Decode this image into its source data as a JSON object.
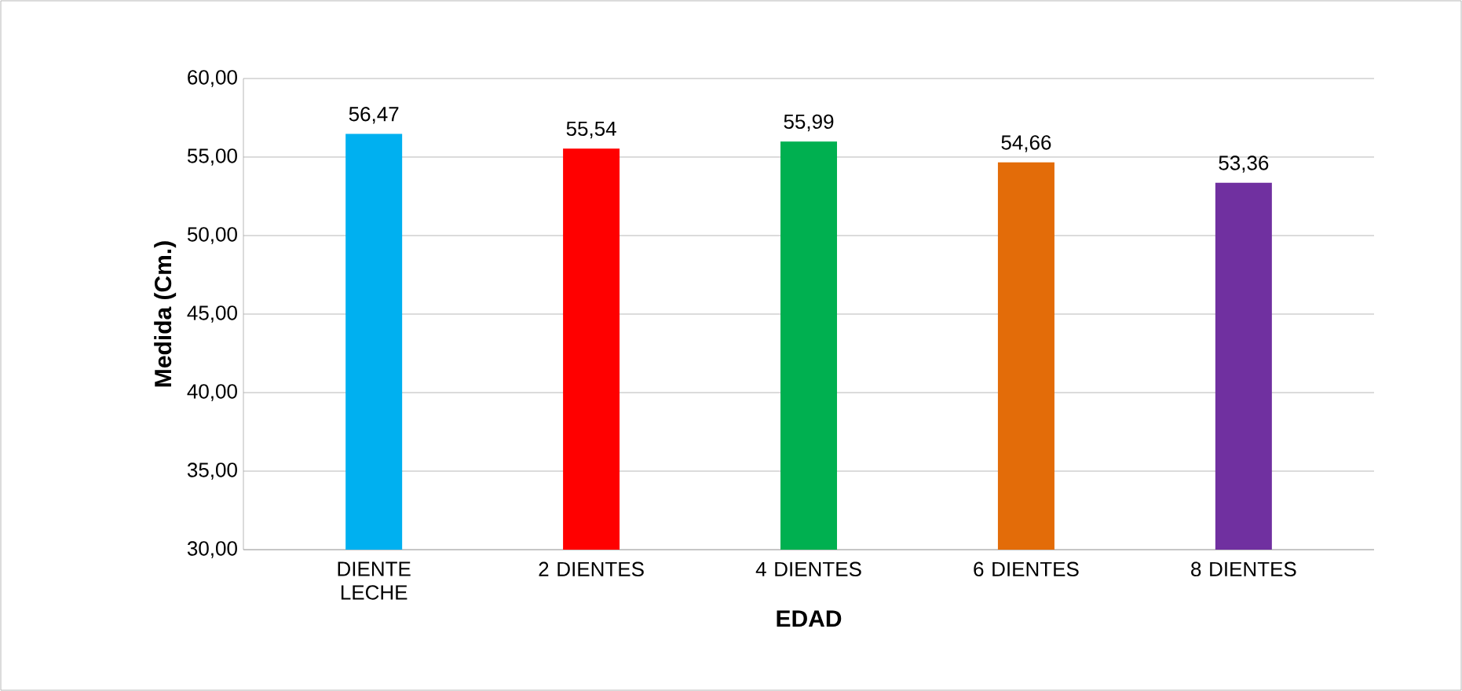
{
  "chart_data": {
    "type": "bar",
    "xlabel": "EDAD",
    "ylabel": "Medida (Cm.)",
    "categories": [
      "DIENTE LECHE",
      "2 DIENTES",
      "4 DIENTES",
      "6 DIENTES",
      "8 DIENTES"
    ],
    "values": [
      56.47,
      55.54,
      55.99,
      54.66,
      53.36
    ],
    "value_labels": [
      "56,47",
      "55,54",
      "55,99",
      "54,66",
      "53,36"
    ],
    "colors": [
      "#00b0f0",
      "#ff0000",
      "#00b050",
      "#e36c09",
      "#7030a0"
    ],
    "ylim": [
      30,
      60
    ],
    "yticks": [
      {
        "value": 30,
        "label": "30,00"
      },
      {
        "value": 35,
        "label": "35,00"
      },
      {
        "value": 40,
        "label": "40,00"
      },
      {
        "value": 45,
        "label": "45,00"
      },
      {
        "value": 50,
        "label": "50,00"
      },
      {
        "value": 55,
        "label": "55,00"
      },
      {
        "value": 60,
        "label": "60,00"
      }
    ],
    "grid": "y"
  }
}
